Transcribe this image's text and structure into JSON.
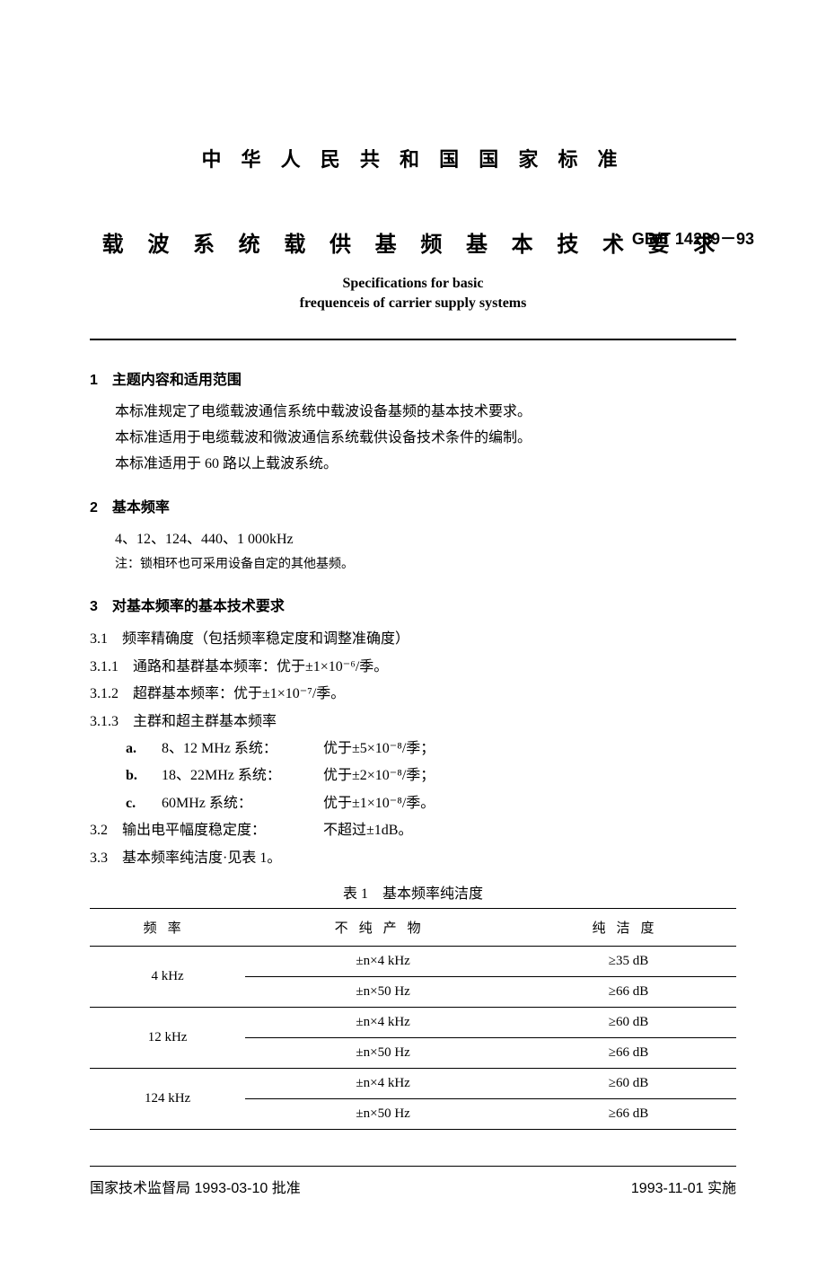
{
  "header_zh": "中 华 人 民 共 和 国 国 家 标 准",
  "title_zh": "载 波 系 统 载 供 基 频 基 本 技 术 要 求",
  "std_code": "GB/T 14239－93",
  "title_en1": "Specifications for basic",
  "title_en2": "frequenceis of carrier supply systems",
  "s1": {
    "h": "1　主题内容和适用范围",
    "p1": "本标准规定了电缆载波通信系统中载波设备基频的基本技术要求。",
    "p2": "本标准适用于电缆载波和微波通信系统载供设备技术条件的编制。",
    "p3": "本标准适用于 60 路以上载波系统。"
  },
  "s2": {
    "h": "2　基本频率",
    "p1": "4、12、124、440、1 000kHz",
    "note": "注：锁相环也可采用设备自定的其他基频。"
  },
  "s3": {
    "h": "3　对基本频率的基本技术要求",
    "i31": "3.1　频率精确度（包括频率稳定度和调整准确度）",
    "i311": "3.1.1　通路和基群基本频率：优于±1×10⁻⁶/季。",
    "i312": "3.1.2　超群基本频率：优于±1×10⁻⁷/季。",
    "i313": "3.1.3　主群和超主群基本频率",
    "a": {
      "label": "a.",
      "mid": "8、12 MHz 系统：",
      "val": "优于±5×10⁻⁸/季；"
    },
    "b": {
      "label": "b.",
      "mid": "18、22MHz 系统：",
      "val": "优于±2×10⁻⁸/季；"
    },
    "c": {
      "label": "c.",
      "mid": "60MHz 系统：",
      "val": "优于±1×10⁻⁸/季。"
    },
    "i32": {
      "lab": "3.2　输出电平幅度稳定度：",
      "val": "不超过±1dB。"
    },
    "i33": "3.3　基本频率纯洁度·见表 1。"
  },
  "table": {
    "caption": "表 1　基本频率纯洁度",
    "headers": [
      "频率",
      "不纯产物",
      "纯洁度"
    ],
    "rows": [
      {
        "freq": "4 kHz",
        "prod": "±n×4 kHz",
        "pur": "≥35 dB"
      },
      {
        "freq": "",
        "prod": "±n×50 Hz",
        "pur": "≥66 dB"
      },
      {
        "freq": "12 kHz",
        "prod": "±n×4 kHz",
        "pur": "≥60 dB"
      },
      {
        "freq": "",
        "prod": "±n×50 Hz",
        "pur": "≥66 dB"
      },
      {
        "freq": "124 kHz",
        "prod": "±n×4 kHz",
        "pur": "≥60 dB"
      },
      {
        "freq": "",
        "prod": "±n×50 Hz",
        "pur": "≥66 dB"
      }
    ]
  },
  "footer": {
    "left": "国家技术监督局 1993-03-10 批准",
    "right": "1993-11-01 实施"
  }
}
